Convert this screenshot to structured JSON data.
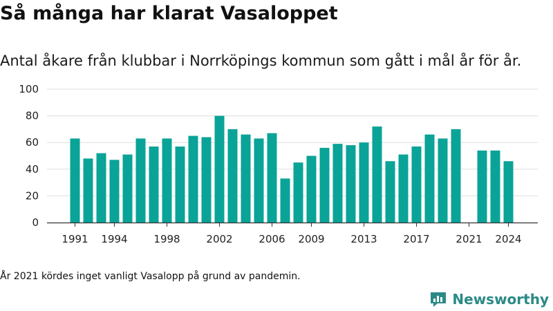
{
  "title": "Så många har klarat Vasaloppet",
  "subtitle": "Antal åkare från klubbar i Norrköpings kommun som gått i mål år för år.",
  "note": "År 2021 kördes inget vanligt Vasalopp på grund av pandemin.",
  "brand": {
    "name": "Newsworthy",
    "icon": "newsworthy-logo-icon"
  },
  "colors": {
    "bar": "#0aa398",
    "grid": "#dddddd",
    "axis": "#333333",
    "text": "#222222",
    "brand": "#2b8a86"
  },
  "chart_data": {
    "type": "bar",
    "x": [
      1991,
      1992,
      1993,
      1994,
      1995,
      1996,
      1997,
      1998,
      1999,
      2000,
      2001,
      2002,
      2003,
      2004,
      2005,
      2006,
      2007,
      2008,
      2009,
      2010,
      2011,
      2012,
      2013,
      2014,
      2015,
      2016,
      2017,
      2018,
      2019,
      2020,
      2021,
      2022,
      2023,
      2024
    ],
    "values": [
      63,
      48,
      52,
      47,
      51,
      63,
      57,
      63,
      57,
      65,
      64,
      80,
      70,
      66,
      63,
      67,
      33,
      45,
      50,
      56,
      59,
      58,
      60,
      72,
      46,
      51,
      57,
      66,
      63,
      70,
      null,
      54,
      54,
      46
    ],
    "xticks": [
      "1991",
      "1994",
      "1998",
      "2002",
      "2006",
      "2009",
      "2013",
      "2017",
      "2021",
      "2024"
    ],
    "yticks": [
      "0",
      "20",
      "40",
      "60",
      "80",
      "100"
    ],
    "ylim": [
      0,
      100
    ],
    "grid": true,
    "xlabel": "",
    "ylabel": ""
  }
}
